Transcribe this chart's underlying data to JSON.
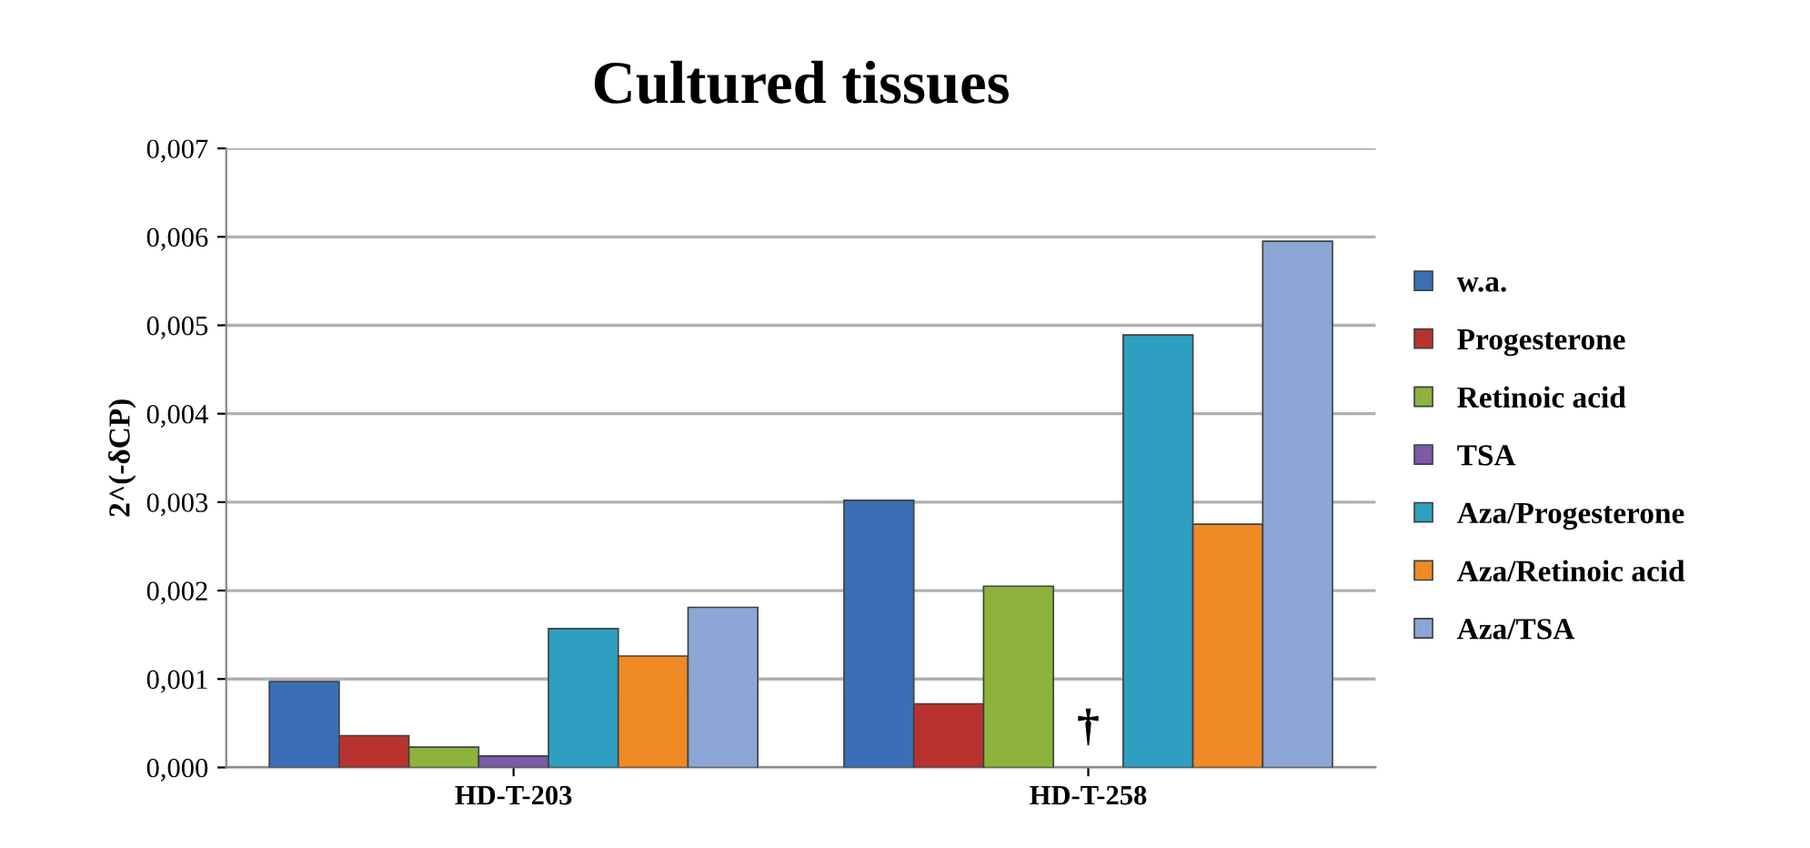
{
  "chart_data": {
    "type": "bar",
    "title": "Cultured tissues",
    "ylabel": "2^(-δCP)",
    "categories": [
      "HD-T-203",
      "HD-T-258"
    ],
    "series": [
      {
        "name": "w.a.",
        "color": "#3a6fb5",
        "values": [
          0.00097,
          0.00302
        ]
      },
      {
        "name": "Progesterone",
        "color": "#b83330",
        "values": [
          0.00036,
          0.00072
        ]
      },
      {
        "name": "Retinoic acid",
        "color": "#8db33d",
        "values": [
          0.00023,
          0.00205
        ]
      },
      {
        "name": "TSA",
        "color": "#7b5aa6",
        "values": [
          0.00013,
          null
        ]
      },
      {
        "name": "Aza/Progesterone",
        "color": "#2e9fc0",
        "values": [
          0.00157,
          0.00489
        ]
      },
      {
        "name": "Aza/Retinoic acid",
        "color": "#f08a24",
        "values": [
          0.00126,
          0.00275
        ]
      },
      {
        "name": "Aza/TSA",
        "color": "#8ca6d6",
        "values": [
          0.00181,
          0.00595
        ]
      }
    ],
    "annotations": [
      "†"
    ],
    "ylim": [
      0,
      0.007
    ],
    "yticks": [
      {
        "value": 0,
        "label": "0,000"
      },
      {
        "value": 0.001,
        "label": "0,001"
      },
      {
        "value": 0.002,
        "label": "0,002"
      },
      {
        "value": 0.003,
        "label": "0,003"
      },
      {
        "value": 0.004,
        "label": "0,004"
      },
      {
        "value": 0.005,
        "label": "0,005"
      },
      {
        "value": 0.006,
        "label": "0,006"
      },
      {
        "value": 0.007,
        "label": "0,007"
      }
    ],
    "grid": "y",
    "legend": "right"
  }
}
